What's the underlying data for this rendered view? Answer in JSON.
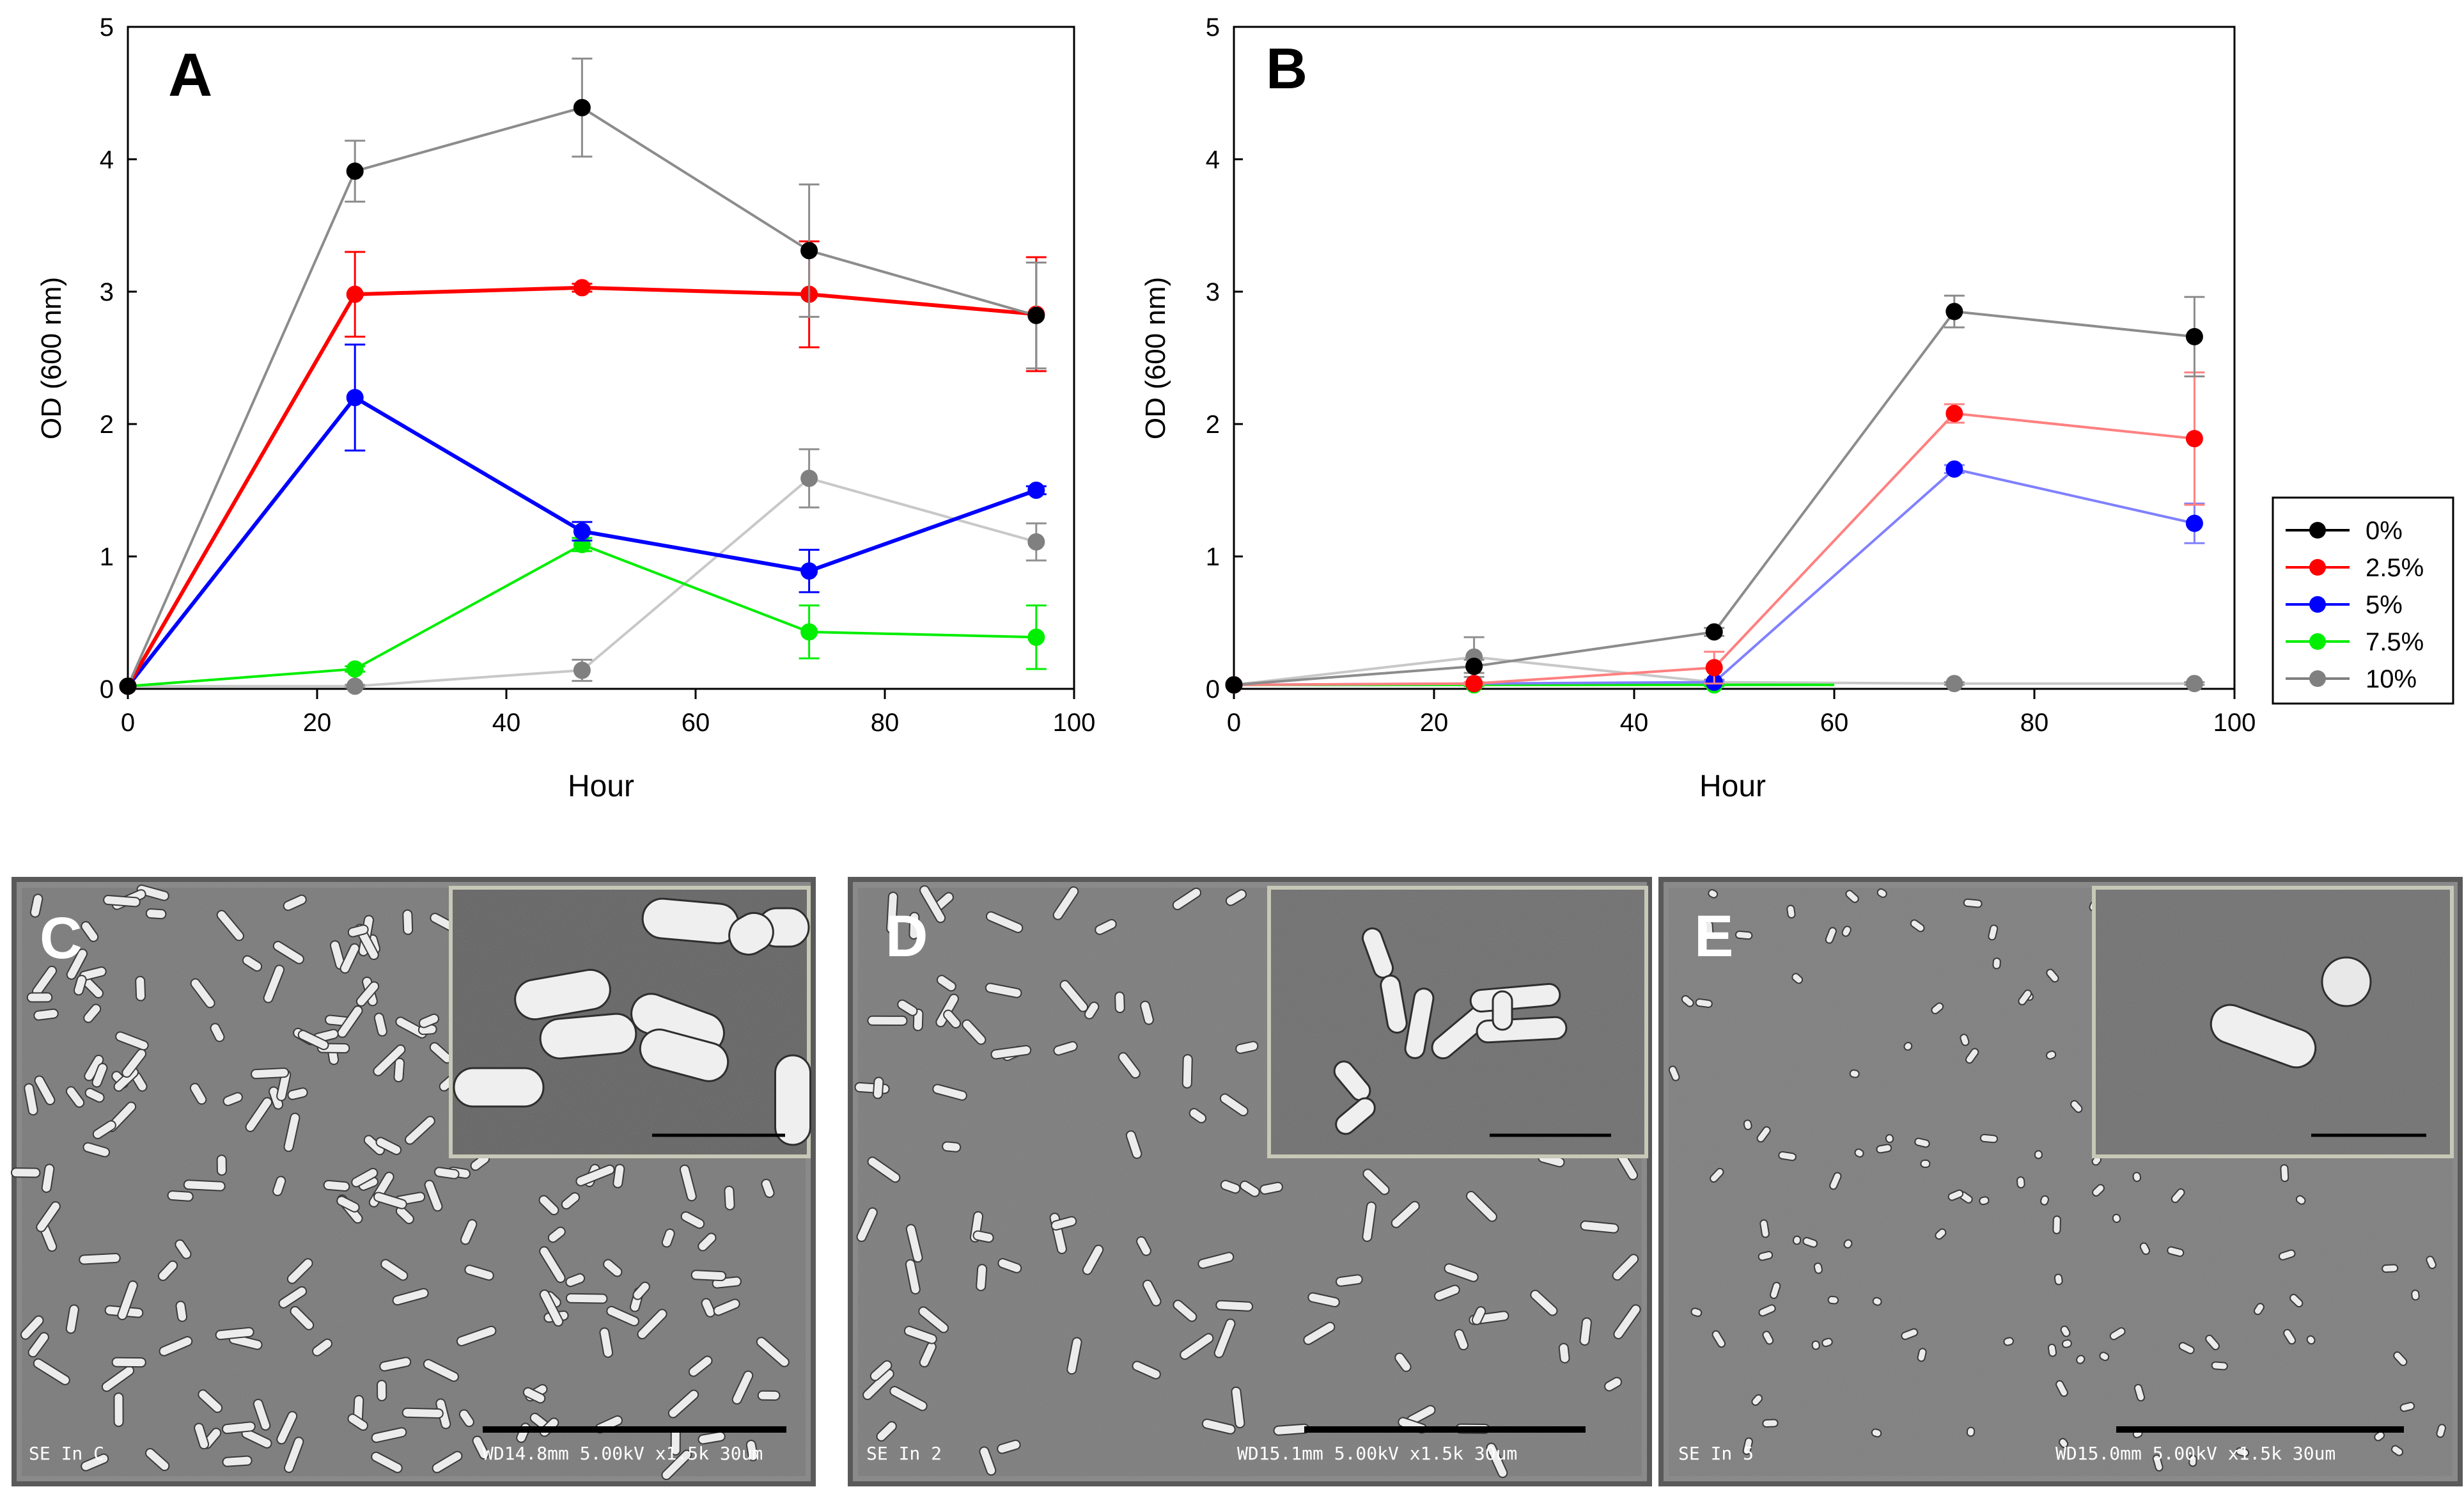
{
  "chart_data": [
    {
      "type": "line",
      "panel_label": "A",
      "xlabel": "Hour",
      "ylabel": "OD (600 nm)",
      "xlim": [
        0,
        100
      ],
      "ylim": [
        0,
        5
      ],
      "xticks": [
        0,
        20,
        40,
        60,
        80,
        100
      ],
      "yticks": [
        0,
        1,
        2,
        3,
        4,
        5
      ],
      "x": [
        0,
        24,
        48,
        72,
        96
      ],
      "series": [
        {
          "name": "0%",
          "color": "#000000",
          "line": "#8c8c8c",
          "values": [
            0.02,
            3.91,
            4.39,
            3.31,
            2.82
          ],
          "errors": [
            0,
            0.23,
            0.37,
            0.5,
            0.4
          ]
        },
        {
          "name": "2.5%",
          "color": "#ff0000",
          "line": "#ff0000",
          "values": [
            0.02,
            2.98,
            3.03,
            2.98,
            2.83
          ],
          "errors": [
            0,
            0.32,
            0.03,
            0.4,
            0.43
          ]
        },
        {
          "name": "5%",
          "color": "#0000ff",
          "line": "#0000ff",
          "values": [
            0.02,
            2.2,
            1.19,
            0.89,
            1.5
          ],
          "errors": [
            0,
            0.4,
            0.07,
            0.16,
            0.03
          ]
        },
        {
          "name": "7.5%",
          "color": "#00ee00",
          "line": "#00ee00",
          "values": [
            0.02,
            0.15,
            1.09,
            0.43,
            0.39
          ],
          "errors": [
            0,
            0.02,
            0.05,
            0.2,
            0.24
          ]
        },
        {
          "name": "10%",
          "color": "#808080",
          "line": "#c8c8c8",
          "values": [
            0.02,
            0.02,
            0.14,
            1.59,
            1.11
          ],
          "errors": [
            0,
            0.01,
            0.08,
            0.22,
            0.14
          ]
        }
      ]
    },
    {
      "type": "line",
      "panel_label": "B",
      "xlabel": "Hour",
      "ylabel": "OD (600 nm)",
      "xlim": [
        0,
        100
      ],
      "ylim": [
        0,
        5
      ],
      "xticks": [
        0,
        20,
        40,
        60,
        80,
        100
      ],
      "yticks": [
        0,
        1,
        2,
        3,
        4,
        5
      ],
      "x": [
        0,
        24,
        48,
        72,
        96
      ],
      "series": [
        {
          "name": "0%",
          "color": "#000000",
          "line": "#8c8c8c",
          "values": [
            0.03,
            0.17,
            0.43,
            2.85,
            2.66
          ],
          "errors": [
            0,
            0.05,
            0.03,
            0.12,
            0.3
          ]
        },
        {
          "name": "2.5%",
          "color": "#ff0000",
          "line": "#ff8080",
          "values": [
            0.03,
            0.04,
            0.16,
            2.08,
            1.89
          ],
          "errors": [
            0,
            0.01,
            0.12,
            0.07,
            0.5
          ]
        },
        {
          "name": "5%",
          "color": "#0000ff",
          "line": "#8080ff",
          "values": [
            0.03,
            0.04,
            0.05,
            1.66,
            1.25
          ],
          "errors": [
            0,
            0.01,
            0.01,
            0.03,
            0.15
          ]
        },
        {
          "name": "7.5%",
          "color": "#00ee00",
          "line": "#00ee00",
          "values": [
            0.03,
            0.03,
            0.03,
            null,
            null
          ],
          "errors": [
            0,
            0.01,
            0.01,
            0,
            0
          ]
        },
        {
          "name": "10%",
          "color": "#808080",
          "line": "#c8c8c8",
          "values": [
            0.03,
            0.24,
            0.05,
            0.04,
            0.04
          ],
          "errors": [
            0,
            0.15,
            0.02,
            0.01,
            0.01
          ]
        }
      ],
      "legend_position": "right"
    }
  ],
  "micrographs": [
    {
      "label": "C",
      "footer_left": "SE    In  C",
      "footer_right": "WD14.8mm 5.00kV x1.5k   30um"
    },
    {
      "label": "D",
      "footer_left": "SE      In  2",
      "footer_right": "WD15.1mm 5.00kV x1.5k   30um"
    },
    {
      "label": "E",
      "footer_left": "SE    In  5",
      "footer_right": "WD15.0mm 5.00kV x1.5k   30um"
    }
  ]
}
